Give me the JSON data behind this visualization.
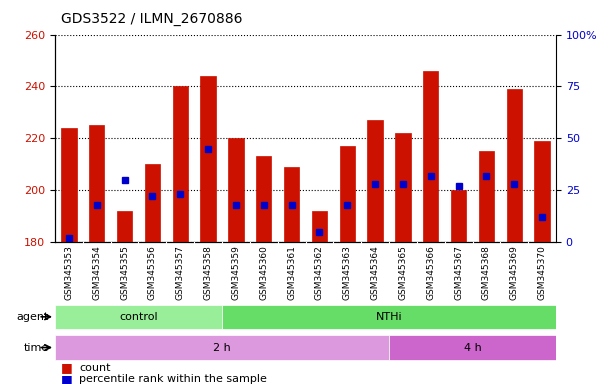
{
  "title": "GDS3522 / ILMN_2670886",
  "samples": [
    "GSM345353",
    "GSM345354",
    "GSM345355",
    "GSM345356",
    "GSM345357",
    "GSM345358",
    "GSM345359",
    "GSM345360",
    "GSM345361",
    "GSM345362",
    "GSM345363",
    "GSM345364",
    "GSM345365",
    "GSM345366",
    "GSM345367",
    "GSM345368",
    "GSM345369",
    "GSM345370"
  ],
  "counts": [
    224,
    225,
    192,
    210,
    240,
    244,
    220,
    213,
    209,
    192,
    217,
    227,
    222,
    246,
    200,
    215,
    239,
    219
  ],
  "percentile_ranks": [
    2,
    18,
    30,
    22,
    23,
    45,
    18,
    18,
    18,
    5,
    18,
    28,
    28,
    32,
    27,
    32,
    28,
    12
  ],
  "baseline": 180,
  "ylim_left": [
    180,
    260
  ],
  "ylim_right": [
    0,
    100
  ],
  "yticks_left": [
    180,
    200,
    220,
    240,
    260
  ],
  "yticks_right": [
    0,
    25,
    50,
    75,
    100
  ],
  "bar_color": "#cc1100",
  "dot_color": "#0000cc",
  "agent_groups": [
    {
      "label": "control",
      "start": 0,
      "end": 6,
      "color": "#99ee99"
    },
    {
      "label": "NTHi",
      "start": 6,
      "end": 18,
      "color": "#66dd66"
    }
  ],
  "time_groups": [
    {
      "label": "2 h",
      "start": 0,
      "end": 12,
      "color": "#dd99dd"
    },
    {
      "label": "4 h",
      "start": 12,
      "end": 18,
      "color": "#cc66cc"
    }
  ],
  "legend_items": [
    {
      "label": "count",
      "color": "#cc1100"
    },
    {
      "label": "percentile rank within the sample",
      "color": "#0000cc"
    }
  ],
  "axis_label_color_left": "#cc1100",
  "axis_label_color_right": "#0000cc"
}
